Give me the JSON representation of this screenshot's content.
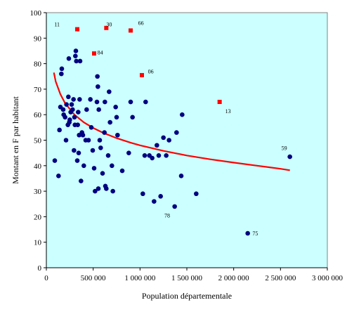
{
  "chart_data": {
    "type": "scatter",
    "title": "",
    "xlabel": "Population départementale",
    "ylabel": "Montant en F par habitant",
    "xlim": [
      0,
      3000000
    ],
    "ylim": [
      0,
      100
    ],
    "x_ticks": [
      "0",
      "500 000",
      "1 000 000",
      "1 500 000",
      "2 000 000",
      "2 500 000",
      "3 000 000"
    ],
    "y_ticks": [
      "0",
      "10",
      "20",
      "30",
      "40",
      "50",
      "60",
      "70",
      "80",
      "90",
      "100"
    ],
    "grid": false,
    "legend": "none",
    "colors": {
      "plot_bg": "#ccffff",
      "points": "#000080",
      "highlight": "#ff0000",
      "trend": "#ff0000"
    },
    "series": [
      {
        "marker": "circle",
        "color": "#000080",
        "points": [
          [
            90000,
            42
          ],
          [
            130000,
            36
          ],
          [
            140000,
            54
          ],
          [
            150000,
            63
          ],
          [
            160000,
            76
          ],
          [
            165000,
            78
          ],
          [
            180000,
            62
          ],
          [
            185000,
            60
          ],
          [
            200000,
            59
          ],
          [
            210000,
            50
          ],
          [
            215000,
            64
          ],
          [
            230000,
            56
          ],
          [
            235000,
            67
          ],
          [
            240000,
            82
          ],
          [
            245000,
            57
          ],
          [
            250000,
            58
          ],
          [
            260000,
            61
          ],
          [
            270000,
            64
          ],
          [
            280000,
            62
          ],
          [
            290000,
            66
          ],
          [
            295000,
            46
          ],
          [
            300000,
            59
          ],
          [
            305000,
            56
          ],
          [
            310000,
            83
          ],
          [
            315000,
            85
          ],
          [
            320000,
            81
          ],
          [
            330000,
            42
          ],
          [
            335000,
            56
          ],
          [
            340000,
            61
          ],
          [
            345000,
            45
          ],
          [
            350000,
            52
          ],
          [
            355000,
            66
          ],
          [
            360000,
            81
          ],
          [
            370000,
            34
          ],
          [
            380000,
            53
          ],
          [
            390000,
            52
          ],
          [
            400000,
            40
          ],
          [
            420000,
            50
          ],
          [
            430000,
            62
          ],
          [
            450000,
            50
          ],
          [
            470000,
            66
          ],
          [
            480000,
            55
          ],
          [
            495000,
            46
          ],
          [
            510000,
            39
          ],
          [
            520000,
            30
          ],
          [
            540000,
            65
          ],
          [
            545000,
            75
          ],
          [
            550000,
            71
          ],
          [
            555000,
            31
          ],
          [
            560000,
            62
          ],
          [
            570000,
            50
          ],
          [
            580000,
            47
          ],
          [
            600000,
            37
          ],
          [
            620000,
            53
          ],
          [
            625000,
            65
          ],
          [
            630000,
            32
          ],
          [
            640000,
            31
          ],
          [
            660000,
            44
          ],
          [
            670000,
            69
          ],
          [
            680000,
            57
          ],
          [
            700000,
            40
          ],
          [
            710000,
            30
          ],
          [
            740000,
            63
          ],
          [
            750000,
            59
          ],
          [
            760000,
            52
          ],
          [
            810000,
            38
          ],
          [
            880000,
            45
          ],
          [
            900000,
            65
          ],
          [
            920000,
            59
          ],
          [
            1030000,
            29
          ],
          [
            1050000,
            44
          ],
          [
            1060000,
            65
          ],
          [
            1100000,
            44
          ],
          [
            1130000,
            43
          ],
          [
            1150000,
            26
          ],
          [
            1180000,
            48
          ],
          [
            1200000,
            44
          ],
          [
            1220000,
            28
          ],
          [
            1250000,
            51
          ],
          [
            1280000,
            44
          ],
          [
            1310000,
            50
          ],
          [
            1370000,
            24
          ],
          [
            1390000,
            53
          ],
          [
            1440000,
            36
          ],
          [
            1450000,
            60
          ],
          [
            1600000,
            29
          ],
          [
            2150000,
            13.5
          ],
          [
            2600000,
            43.5
          ]
        ]
      },
      {
        "marker": "square",
        "color": "#ff0000",
        "points": [
          [
            330000,
            93.5
          ],
          [
            510000,
            84
          ],
          [
            640000,
            94
          ],
          [
            900000,
            93
          ],
          [
            1020000,
            75.5
          ],
          [
            1850000,
            65
          ]
        ]
      }
    ],
    "annotations": [
      {
        "text": "11",
        "x": 85000,
        "y": 95.5
      },
      {
        "text": "30",
        "x": 640000,
        "y": 95.5
      },
      {
        "text": "66",
        "x": 980000,
        "y": 96
      },
      {
        "text": "84",
        "x": 545000,
        "y": 84.5
      },
      {
        "text": "06",
        "x": 1085000,
        "y": 77
      },
      {
        "text": "13",
        "x": 1910000,
        "y": 61.5
      },
      {
        "text": "59",
        "x": 2510000,
        "y": 47
      },
      {
        "text": "78",
        "x": 1260000,
        "y": 20.5
      },
      {
        "text": "75",
        "x": 2200000,
        "y": 13.5
      }
    ],
    "trendline": {
      "type": "curve",
      "color": "#ff0000",
      "points": [
        [
          80000,
          76.5
        ],
        [
          100000,
          73
        ],
        [
          150000,
          68
        ],
        [
          200000,
          64.5
        ],
        [
          300000,
          60
        ],
        [
          400000,
          57
        ],
        [
          500000,
          54.8
        ],
        [
          600000,
          53
        ],
        [
          750000,
          50.8
        ],
        [
          900000,
          49
        ],
        [
          1000000,
          48
        ],
        [
          1250000,
          45.8
        ],
        [
          1500000,
          44
        ],
        [
          1750000,
          42.5
        ],
        [
          2000000,
          41.2
        ],
        [
          2250000,
          40
        ],
        [
          2500000,
          38.8
        ],
        [
          2600000,
          38.2
        ]
      ]
    }
  }
}
